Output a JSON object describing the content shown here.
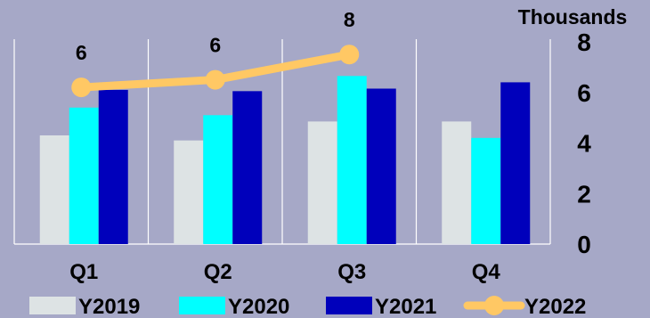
{
  "chart_data": {
    "type": "bar",
    "categories": [
      "Q1",
      "Q2",
      "Q3",
      "Q4"
    ],
    "series": [
      {
        "name": "Y2019",
        "type": "bar",
        "color": "#dde3e4",
        "values": [
          4.3,
          4.1,
          4.85,
          4.85
        ]
      },
      {
        "name": "Y2020",
        "type": "bar",
        "color": "#00ffff",
        "values": [
          5.4,
          5.1,
          6.65,
          4.2
        ]
      },
      {
        "name": "Y2021",
        "type": "bar",
        "color": "#0000bb",
        "values": [
          6.1,
          6.05,
          6.15,
          6.4
        ]
      },
      {
        "name": "Y2022",
        "type": "line",
        "color": "#ffc864",
        "values": [
          6.2,
          6.5,
          7.5,
          null
        ],
        "data_labels": [
          "6",
          "6",
          "8",
          ""
        ]
      }
    ],
    "y_axis": {
      "side": "right",
      "unit_label": "Thousands",
      "ylim": [
        0,
        8
      ],
      "ticks": [
        0,
        2,
        4,
        6,
        8
      ],
      "tick_labels": [
        "0",
        "2",
        "4",
        "6",
        "8"
      ]
    },
    "grid": {
      "vertical_separators": true,
      "horizontal": false
    },
    "legend": {
      "position": "bottom"
    }
  }
}
